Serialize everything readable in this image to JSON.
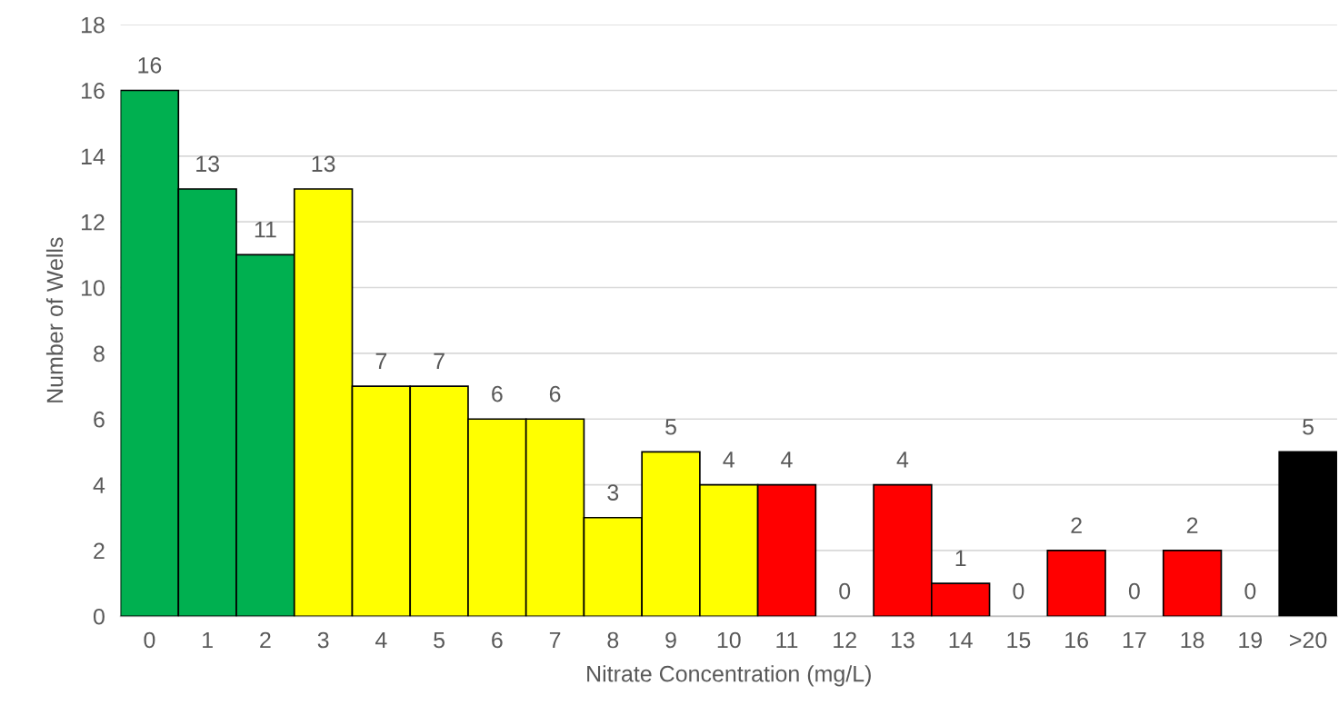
{
  "chart_data": {
    "type": "bar",
    "xlabel": "Nitrate Concentration (mg/L)",
    "ylabel": "Number of Wells",
    "categories": [
      "0",
      "1",
      "2",
      "3",
      "4",
      "5",
      "6",
      "7",
      "8",
      "9",
      "10",
      "11",
      "12",
      "13",
      "14",
      "15",
      "16",
      "17",
      "18",
      "19",
      ">20"
    ],
    "values": [
      16,
      13,
      11,
      13,
      7,
      7,
      6,
      6,
      3,
      5,
      4,
      4,
      0,
      4,
      1,
      0,
      2,
      0,
      2,
      0,
      5
    ],
    "colors": [
      "#00b050",
      "#00b050",
      "#00b050",
      "#ffff00",
      "#ffff00",
      "#ffff00",
      "#ffff00",
      "#ffff00",
      "#ffff00",
      "#ffff00",
      "#ffff00",
      "#ff0000",
      "#ff0000",
      "#ff0000",
      "#ff0000",
      "#ff0000",
      "#ff0000",
      "#ff0000",
      "#ff0000",
      "#ff0000",
      "#000000"
    ],
    "ylim": [
      0,
      18
    ],
    "yticks": [
      0,
      2,
      4,
      6,
      8,
      10,
      12,
      14,
      16,
      18
    ],
    "grid": "y",
    "data_labels": true
  }
}
